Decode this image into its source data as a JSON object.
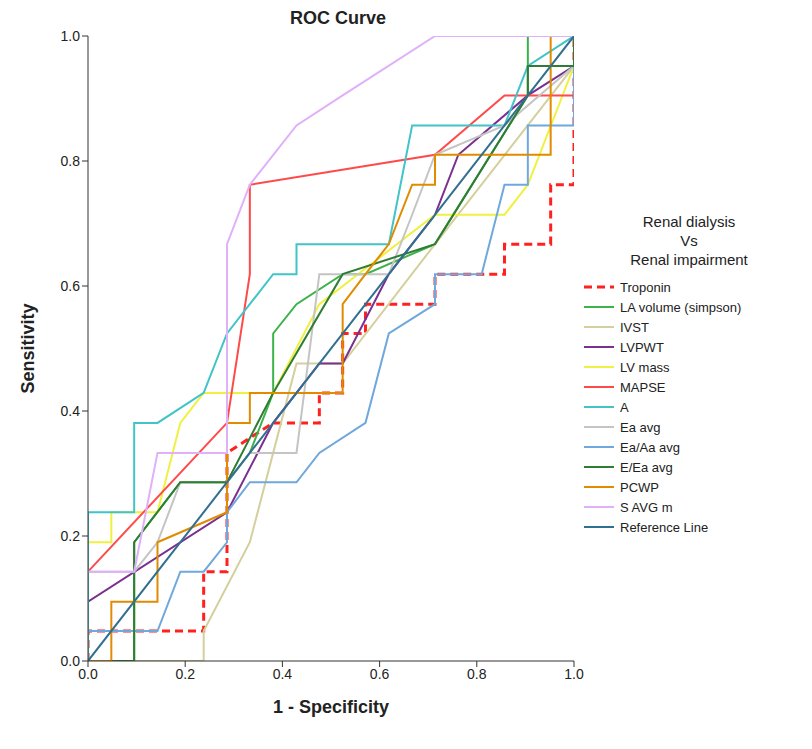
{
  "chart_data": {
    "type": "line",
    "title": "ROC Curve",
    "x_label": "1 - Specificity",
    "y_label": "Sensitivity",
    "legend_title": [
      "Renal dialysis",
      "Vs",
      "Renal impairment"
    ],
    "legend": "right",
    "grid": false,
    "xlim": [
      0,
      1
    ],
    "ylim": [
      0,
      1
    ],
    "xticks": [
      {
        "value": 0,
        "label": "0.0"
      },
      0.2,
      0.4,
      0.6,
      0.8,
      {
        "value": 1,
        "label": "1.0"
      }
    ],
    "yticks": [
      {
        "value": 0,
        "label": "0.0"
      },
      0.2,
      0.4,
      0.6,
      0.8,
      {
        "value": 1,
        "label": "1.0"
      }
    ],
    "series": [
      {
        "name": "Troponin",
        "color": "#ff2020",
        "line_style": "dashed",
        "x": [
          0,
          0,
          0.238,
          0.238,
          0.286,
          0.286,
          0.381,
          0.476,
          0.476,
          0.524,
          0.524,
          0.571,
          0.571,
          0.714,
          0.714,
          0.857,
          0.857,
          0.952,
          0.952,
          1,
          1
        ],
        "values": [
          0,
          0.048,
          0.048,
          0.143,
          0.143,
          0.333,
          0.381,
          0.381,
          0.429,
          0.429,
          0.524,
          0.524,
          0.571,
          0.571,
          0.619,
          0.619,
          0.667,
          0.667,
          0.762,
          0.762,
          1
        ]
      },
      {
        "name": "LA volume (simpson)",
        "color": "#3cb34a",
        "line_style": "solid",
        "x": [
          0,
          0.095,
          0.095,
          0.19,
          0.286,
          0.333,
          0.381,
          0.381,
          0.429,
          0.524,
          0.571,
          0.714,
          0.905,
          0.905,
          1
        ],
        "values": [
          0,
          0,
          0.19,
          0.286,
          0.286,
          0.333,
          0.429,
          0.524,
          0.571,
          0.619,
          0.619,
          0.667,
          0.905,
          1,
          1
        ]
      },
      {
        "name": "IVST",
        "color": "#d4cf9c",
        "line_style": "solid",
        "x": [
          0,
          0.238,
          0.238,
          0.333,
          0.381,
          0.429,
          0.524,
          0.714,
          1,
          1
        ],
        "values": [
          0,
          0,
          0.048,
          0.19,
          0.333,
          0.476,
          0.476,
          0.667,
          0.952,
          1
        ]
      },
      {
        "name": "LVPWT",
        "color": "#7b2f8e",
        "line_style": "solid",
        "x": [
          0,
          0.286,
          0.381,
          0.476,
          0.524,
          0.619,
          0.714,
          0.762,
          0.905,
          1,
          1
        ],
        "values": [
          0.095,
          0.238,
          0.381,
          0.476,
          0.476,
          0.619,
          0.714,
          0.81,
          0.905,
          0.952,
          1
        ]
      },
      {
        "name": "LV mass",
        "color": "#f0f040",
        "line_style": "solid",
        "x": [
          0,
          0.048,
          0.048,
          0.143,
          0.19,
          0.238,
          0.381,
          0.476,
          0.714,
          0.857,
          0.905,
          1,
          1
        ],
        "values": [
          0.19,
          0.19,
          0.238,
          0.238,
          0.381,
          0.429,
          0.429,
          0.571,
          0.714,
          0.714,
          0.762,
          0.952,
          1
        ]
      },
      {
        "name": "MAPSE",
        "color": "#ff4a4a",
        "line_style": "solid",
        "x": [
          0,
          0.286,
          0.333,
          0.333,
          0.714,
          0.857,
          1,
          1
        ],
        "values": [
          0.143,
          0.381,
          0.619,
          0.762,
          0.81,
          0.905,
          0.905,
          1
        ]
      },
      {
        "name": "A",
        "color": "#40c4c8",
        "line_style": "solid",
        "x": [
          0,
          0,
          0.095,
          0.095,
          0.143,
          0.238,
          0.286,
          0.381,
          0.429,
          0.429,
          0.619,
          0.667,
          0.857,
          0.905,
          1
        ],
        "values": [
          0,
          0.238,
          0.238,
          0.381,
          0.381,
          0.429,
          0.524,
          0.619,
          0.619,
          0.667,
          0.667,
          0.857,
          0.857,
          0.952,
          1
        ]
      },
      {
        "name": "Ea avg",
        "color": "#c4c4c4",
        "line_style": "solid",
        "x": [
          0,
          0.095,
          0.143,
          0.19,
          0.286,
          0.333,
          0.429,
          0.476,
          0.619,
          0.667,
          0.714,
          0.857,
          1,
          1
        ],
        "values": [
          0.143,
          0.143,
          0.19,
          0.286,
          0.286,
          0.333,
          0.333,
          0.619,
          0.619,
          0.714,
          0.81,
          0.857,
          0.952,
          1
        ]
      },
      {
        "name": "Ea/Aa avg",
        "color": "#6fa8dc",
        "line_style": "solid",
        "x": [
          0,
          0.143,
          0.19,
          0.238,
          0.286,
          0.286,
          0.333,
          0.429,
          0.476,
          0.571,
          0.619,
          0.714,
          0.714,
          0.81,
          0.857,
          0.905,
          0.905,
          1,
          1
        ],
        "values": [
          0.048,
          0.048,
          0.143,
          0.143,
          0.19,
          0.238,
          0.286,
          0.286,
          0.333,
          0.381,
          0.524,
          0.571,
          0.619,
          0.619,
          0.762,
          0.762,
          0.857,
          0.857,
          1
        ]
      },
      {
        "name": "E/Ea avg",
        "color": "#2e7d32",
        "line_style": "solid",
        "x": [
          0,
          0.095,
          0.095,
          0.19,
          0.286,
          0.381,
          0.524,
          0.714,
          0.905,
          0.905,
          1,
          1
        ],
        "values": [
          0,
          0,
          0.19,
          0.286,
          0.286,
          0.429,
          0.619,
          0.667,
          0.905,
          0.952,
          0.952,
          1
        ]
      },
      {
        "name": "PCWP",
        "color": "#e08b00",
        "line_style": "solid",
        "x": [
          0,
          0.048,
          0.048,
          0.143,
          0.143,
          0.286,
          0.286,
          0.333,
          0.333,
          0.524,
          0.524,
          0.571,
          0.619,
          0.667,
          0.714,
          0.714,
          0.952,
          0.952,
          1
        ],
        "values": [
          0,
          0,
          0.095,
          0.095,
          0.19,
          0.238,
          0.381,
          0.381,
          0.429,
          0.429,
          0.571,
          0.619,
          0.667,
          0.762,
          0.762,
          0.81,
          0.81,
          1,
          1
        ]
      },
      {
        "name": "S AVG m",
        "color": "#e0b0f8",
        "line_style": "solid",
        "x": [
          0,
          0.095,
          0.143,
          0.286,
          0.286,
          0.333,
          0.429,
          0.524,
          0.714,
          1
        ],
        "values": [
          0.143,
          0.143,
          0.333,
          0.333,
          0.667,
          0.762,
          0.857,
          0.905,
          1,
          1
        ]
      },
      {
        "name": "Reference Line",
        "color": "#2f6f8f",
        "line_style": "solid",
        "x": [
          0,
          1
        ],
        "values": [
          0,
          1
        ]
      }
    ]
  }
}
